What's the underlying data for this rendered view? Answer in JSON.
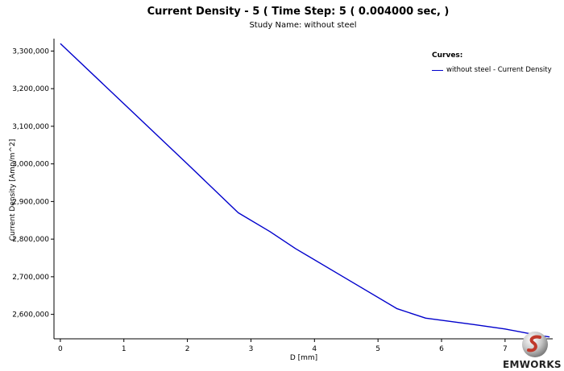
{
  "chart_data": {
    "type": "line",
    "title": "Current Density - 5 ( Time Step: 5 ( 0.004000 sec, )",
    "subtitle": "Study Name: without steel",
    "xlabel": "D [mm]",
    "ylabel": "Current Density [Amp/m^2]",
    "xlim": [
      -0.1,
      7.75
    ],
    "ylim": [
      2535000,
      3333000
    ],
    "xticks": [
      0,
      1,
      2,
      3,
      4,
      5,
      6,
      7
    ],
    "xtick_labels": [
      "0",
      "1",
      "2",
      "3",
      "4",
      "5",
      "6",
      "7"
    ],
    "yticks": [
      2600000,
      2700000,
      2800000,
      2900000,
      3000000,
      3100000,
      3200000,
      3300000
    ],
    "ytick_labels": [
      "2,600,000",
      "2,700,000",
      "2,800,000",
      "2,900,000",
      "3,000,000",
      "3,100,000",
      "3,200,000",
      "3,300,000"
    ],
    "grid": false,
    "legend": {
      "title": "Curves:",
      "placement": "top-right"
    },
    "series": [
      {
        "name": "without steel - Current Density",
        "color": "#0000cc",
        "x": [
          0,
          1.0,
          2.0,
          2.8,
          3.3,
          3.7,
          4.5,
          5.3,
          5.75,
          6.5,
          7.0,
          7.5,
          7.7
        ],
        "y": [
          3320000,
          3160000,
          3000000,
          2870000,
          2820000,
          2775000,
          2695000,
          2615000,
          2590000,
          2573000,
          2561000,
          2545000,
          2540000
        ]
      }
    ]
  },
  "brand": {
    "name": "EMWORKS",
    "icon": "emworks-logo-icon",
    "colors": {
      "sphere": "#bfbfbf",
      "swoosh": "#c0392b"
    }
  }
}
